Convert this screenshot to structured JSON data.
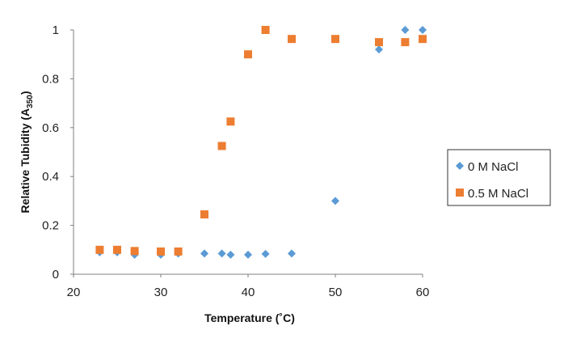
{
  "chart_data": {
    "type": "scatter",
    "title": "",
    "xlabel": "Temperature (˚C)",
    "ylabel_main": "Relative Tubidity (A",
    "ylabel_sub": "350",
    "ylabel_tail": ")",
    "xlim": [
      20,
      60
    ],
    "ylim": [
      0,
      1
    ],
    "xticks": [
      "20",
      "30",
      "40",
      "50",
      "60"
    ],
    "yticks": [
      "0",
      "0.2",
      "0.4",
      "0.6",
      "0.8",
      "1"
    ],
    "grid": false,
    "legend_position": "right",
    "series": [
      {
        "name": "0 M NaCl",
        "marker": "diamond",
        "color": "#5b9bd5",
        "x": [
          23,
          25,
          27,
          30,
          32,
          35,
          37,
          38,
          40,
          42,
          45,
          50,
          55,
          58,
          60
        ],
        "y": [
          0.09,
          0.09,
          0.08,
          0.08,
          0.085,
          0.085,
          0.085,
          0.08,
          0.08,
          0.083,
          0.085,
          0.3,
          0.92,
          1.0,
          1.0
        ]
      },
      {
        "name": "0.5 M NaCl",
        "marker": "square",
        "color": "#ed7d31",
        "x": [
          23,
          25,
          27,
          30,
          32,
          35,
          37,
          38,
          40,
          42,
          45,
          50,
          55,
          58,
          60
        ],
        "y": [
          0.1,
          0.1,
          0.095,
          0.093,
          0.093,
          0.245,
          0.525,
          0.625,
          0.9,
          1.0,
          0.963,
          0.963,
          0.95,
          0.95,
          0.963
        ]
      }
    ]
  }
}
